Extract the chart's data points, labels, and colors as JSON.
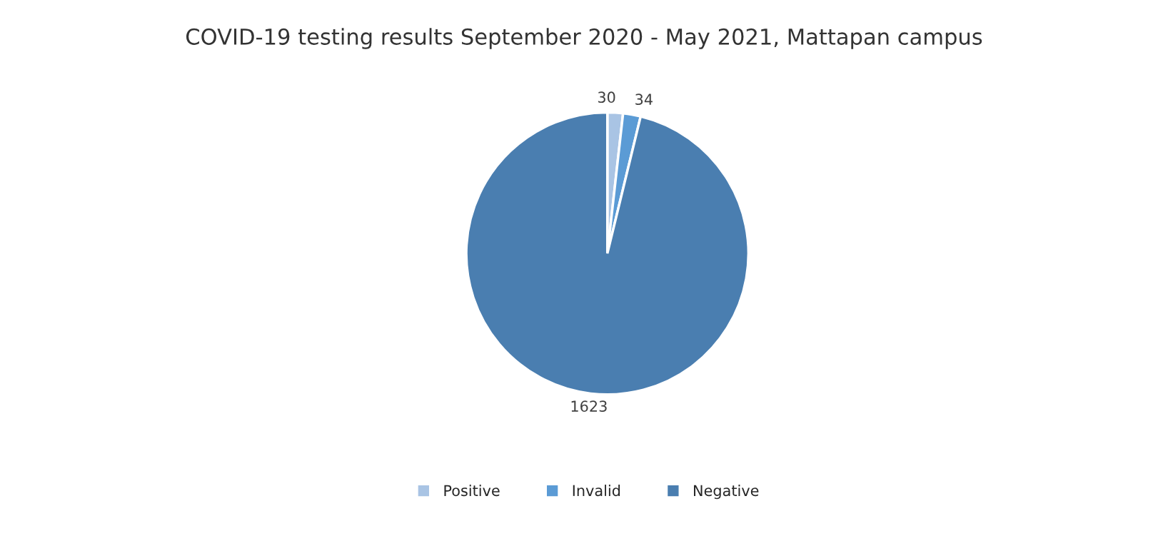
{
  "chart_data": {
    "type": "pie",
    "title": "COVID-19 testing results September 2020 - May 2021, Mattapan campus",
    "categories": [
      "Positive",
      "Invalid",
      "Negative"
    ],
    "values": [
      30,
      34,
      1623
    ],
    "colors": [
      "#a9c4e4",
      "#5b9bd5",
      "#4a7eb0"
    ],
    "data_labels": true,
    "legend": "bottom"
  }
}
